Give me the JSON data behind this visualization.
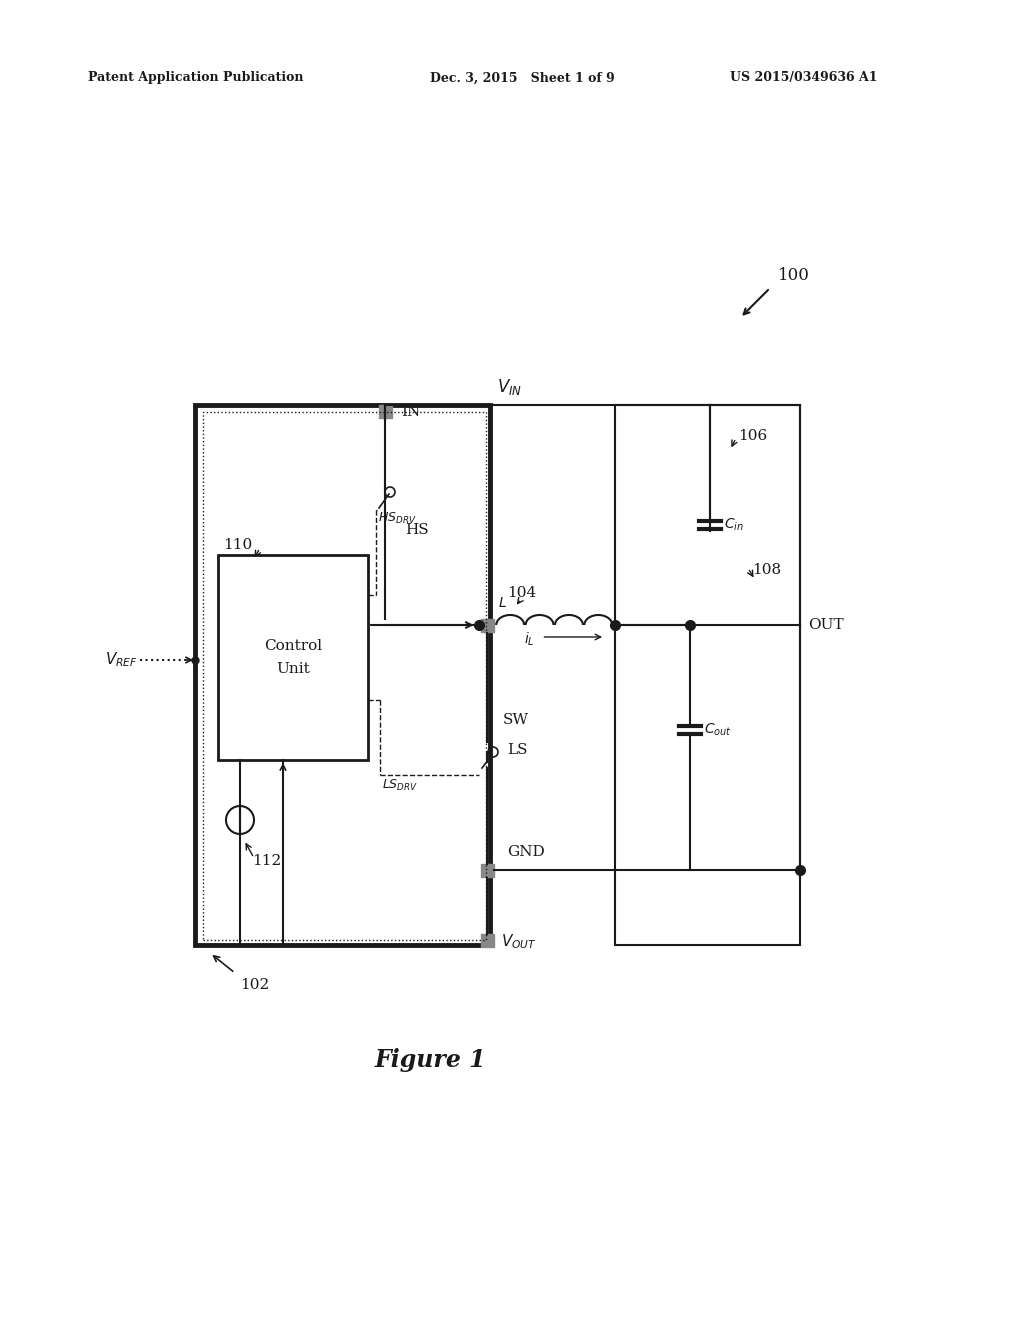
{
  "bg_color": "#ffffff",
  "header_left": "Patent Application Publication",
  "header_mid": "Dec. 3, 2015   Sheet 1 of 9",
  "header_right": "US 2015/0349636 A1",
  "figure_label": "Figure 1",
  "ref_100": "100",
  "ref_102": "102",
  "ref_104": "104",
  "ref_106": "106",
  "ref_108": "108",
  "ref_110": "110",
  "ref_112": "112",
  "label_IN": "IN",
  "label_OUT": "OUT",
  "label_HS": "HS",
  "label_LS": "LS",
  "label_SW": "SW",
  "label_GND": "GND",
  "label_ControlUnit": "Control\nUnit",
  "color_main": "#1a1a1a",
  "color_gray": "#888888",
  "lw_main": 1.5,
  "lw_thick": 3.5,
  "lw_cap": 3.0,
  "sq_size": 13
}
